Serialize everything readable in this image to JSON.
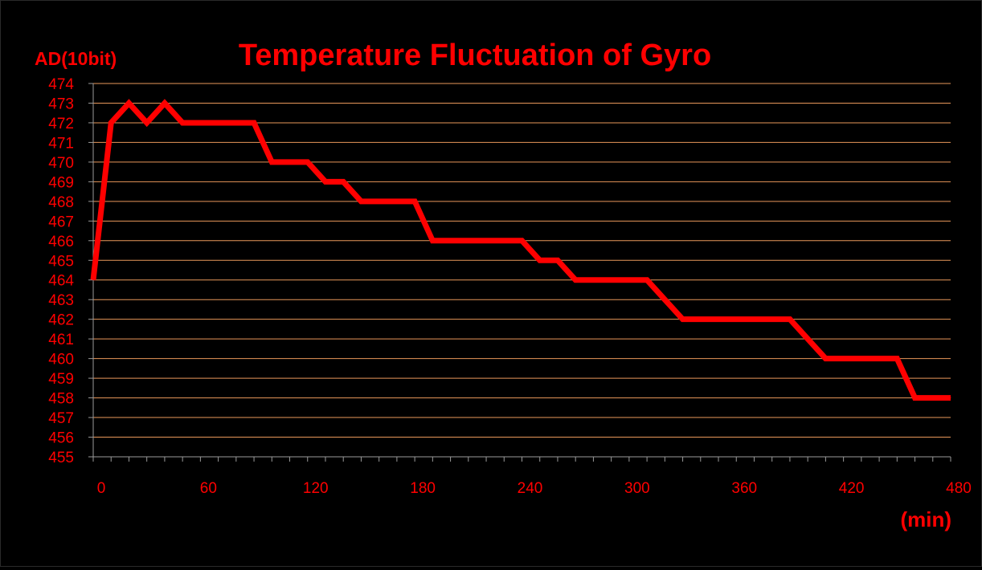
{
  "chart_data": {
    "type": "line",
    "title": "Temperature Fluctuation of Gyro",
    "ylabel": "AD(10bit)",
    "xlabel": "(min)",
    "xlim": [
      0,
      480
    ],
    "ylim": [
      455,
      474
    ],
    "x_ticks": [
      0,
      60,
      120,
      180,
      240,
      300,
      360,
      420,
      480
    ],
    "y_ticks": [
      455,
      456,
      457,
      458,
      459,
      460,
      461,
      462,
      463,
      464,
      465,
      466,
      467,
      468,
      469,
      470,
      471,
      472,
      473,
      474
    ],
    "grid": true,
    "legend": "none",
    "series": [
      {
        "x": [
          0,
          10,
          20,
          30,
          40,
          50,
          60,
          70,
          80,
          90,
          100,
          110,
          120,
          130,
          140,
          150,
          160,
          170,
          180,
          190,
          200,
          210,
          220,
          230,
          240,
          250,
          260,
          270,
          280,
          290,
          300,
          310,
          320,
          330,
          340,
          350,
          360,
          370,
          380,
          390,
          400,
          410,
          420,
          430,
          440,
          450,
          460,
          470,
          480
        ],
        "values": [
          464,
          472,
          473,
          472,
          473,
          472,
          472,
          472,
          472,
          472,
          470,
          470,
          470,
          469,
          469,
          468,
          468,
          468,
          468,
          466,
          466,
          466,
          466,
          466,
          466,
          465,
          465,
          464,
          464,
          464,
          464,
          464,
          463,
          462,
          462,
          462,
          462,
          462,
          462,
          462,
          461,
          460,
          460,
          460,
          460,
          460,
          458,
          458,
          458
        ]
      }
    ]
  },
  "colors": {
    "background": "#000000",
    "text": "#ff0000",
    "line": "#ff0000",
    "grid": "#e8975a",
    "axis": "#9a9a9a"
  }
}
